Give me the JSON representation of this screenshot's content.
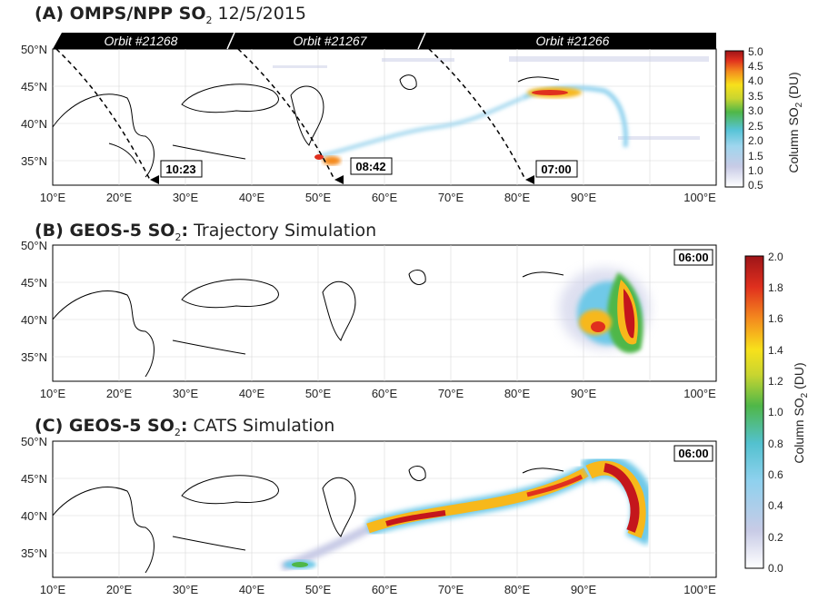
{
  "panels": [
    {
      "id": "A",
      "title_bold_1": "(A) OMPS/NPP SO",
      "title_sub": "2",
      "title_rest": " 12/5/2015",
      "orbits": [
        "Orbit #21268",
        "Orbit #21267",
        "Orbit #21266"
      ],
      "times": [
        "10:23",
        "08:42",
        "07:00"
      ],
      "colorbar_label": "Column SO",
      "colorbar_label_sub": "2",
      "colorbar_unit": " (DU)",
      "colorbar_ticks": [
        "5.0",
        "4.5",
        "4.0",
        "3.5",
        "3.0",
        "2.5",
        "2.0",
        "1.5",
        "1.0",
        "0.5"
      ]
    },
    {
      "id": "B",
      "title_bold_1": "(B) GEOS-5 SO",
      "title_sub": "2",
      "title_bold_2": ":",
      "title_rest": " Trajectory Simulation",
      "time": "06:00"
    },
    {
      "id": "C",
      "title_bold_1": "(C) GEOS-5 SO",
      "title_sub": "2",
      "title_bold_2": ":",
      "title_rest": " CATS Simulation",
      "time": "06:00",
      "colorbar_label": "Column SO",
      "colorbar_label_sub": "2",
      "colorbar_unit": " (DU)",
      "colorbar_ticks": [
        "2.0",
        "1.8",
        "1.6",
        "1.4",
        "1.2",
        "1.0",
        "0.8",
        "0.6",
        "0.4",
        "0.2",
        "0.0"
      ]
    }
  ],
  "lon_ticks": [
    "10°E",
    "20°E",
    "30°E",
    "40°E",
    "50°E",
    "60°E",
    "70°E",
    "80°E",
    "90°E",
    "100°E"
  ],
  "lat_ticks": [
    "50°N",
    "45°N",
    "40°N",
    "35°N"
  ],
  "colors": {
    "high": "#c4161c",
    "mid_high": "#f7b81b",
    "mid": "#4fb748",
    "low": "#6fc9e8",
    "lowest": "#c8cbe6"
  }
}
